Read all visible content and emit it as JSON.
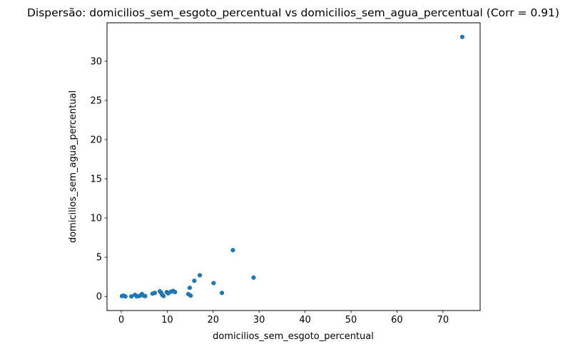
{
  "chart_data": {
    "type": "scatter",
    "title": "Dispersão: domicilios_sem_esgoto_percentual vs domicilios_sem_agua_percentual (Corr = 0.91)",
    "xlabel": "domicilios_sem_esgoto_percentual",
    "ylabel": "domicilios_sem_agua_percentual",
    "correlation": 0.91,
    "xlim": [
      -3.1,
      78.1
    ],
    "ylim": [
      -1.8,
      34.9
    ],
    "xticks": [
      0,
      10,
      20,
      30,
      40,
      50,
      60,
      70
    ],
    "yticks": [
      0,
      5,
      10,
      15,
      20,
      25,
      30
    ],
    "grid": false,
    "legend": false,
    "point_color": "#1f77b4",
    "background_color": "#ffffff",
    "spine_color": "#000000",
    "points": [
      [
        0.15,
        0.05
      ],
      [
        0.5,
        0.1
      ],
      [
        0.9,
        0.0
      ],
      [
        2.2,
        0.0
      ],
      [
        3.0,
        0.2
      ],
      [
        3.4,
        0.0
      ],
      [
        3.9,
        0.05
      ],
      [
        4.5,
        0.3
      ],
      [
        4.8,
        0.1
      ],
      [
        5.2,
        0.05
      ],
      [
        6.8,
        0.35
      ],
      [
        7.3,
        0.45
      ],
      [
        8.4,
        0.65
      ],
      [
        8.7,
        0.45
      ],
      [
        8.9,
        0.2
      ],
      [
        9.2,
        0.05
      ],
      [
        9.9,
        0.55
      ],
      [
        10.2,
        0.4
      ],
      [
        10.8,
        0.6
      ],
      [
        11.3,
        0.7
      ],
      [
        11.7,
        0.55
      ],
      [
        14.6,
        0.3
      ],
      [
        15.1,
        0.1
      ],
      [
        14.9,
        1.1
      ],
      [
        15.9,
        2.0
      ],
      [
        17.1,
        2.7
      ],
      [
        20.1,
        1.7
      ],
      [
        21.9,
        0.45
      ],
      [
        24.3,
        5.9
      ],
      [
        28.8,
        2.4
      ],
      [
        74.2,
        33.1
      ]
    ]
  }
}
